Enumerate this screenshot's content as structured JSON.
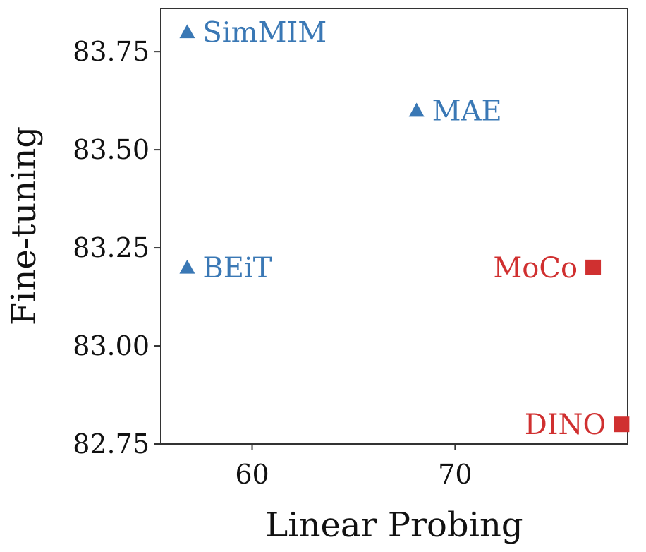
{
  "chart_data": {
    "type": "scatter",
    "title": "",
    "xlabel": "Linear Probing",
    "ylabel": "Fine-tuning",
    "xlim": [
      55.5,
      78.5
    ],
    "ylim": [
      82.75,
      83.86
    ],
    "xticks": [
      60,
      70
    ],
    "xtick_labels": [
      "60",
      "70"
    ],
    "yticks": [
      82.75,
      83.0,
      83.25,
      83.5,
      83.75
    ],
    "ytick_labels": [
      "82.75",
      "83.00",
      "83.25",
      "83.50",
      "83.75"
    ],
    "grid": false,
    "colors": {
      "blue": "#3a78b5",
      "red": "#d03030"
    },
    "points": [
      {
        "label": "SimMIM",
        "x": 56.8,
        "y": 83.8,
        "marker": "triangle",
        "color": "blue",
        "label_side": "right"
      },
      {
        "label": "MAE",
        "x": 68.1,
        "y": 83.6,
        "marker": "triangle",
        "color": "blue",
        "label_side": "right"
      },
      {
        "label": "BEiT",
        "x": 56.8,
        "y": 83.2,
        "marker": "triangle",
        "color": "blue",
        "label_side": "right"
      },
      {
        "label": "MoCo",
        "x": 76.8,
        "y": 83.2,
        "marker": "square",
        "color": "red",
        "label_side": "left"
      },
      {
        "label": "DINO",
        "x": 78.2,
        "y": 82.8,
        "marker": "square",
        "color": "red",
        "label_side": "left"
      }
    ]
  }
}
